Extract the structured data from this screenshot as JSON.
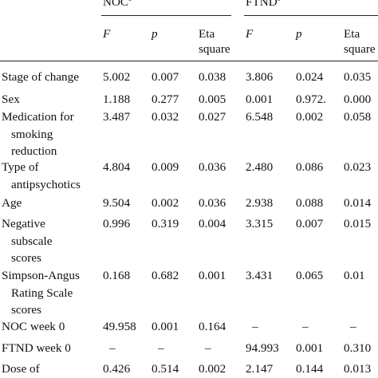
{
  "header": {
    "noc_label": "NOC",
    "noc_sup": "a",
    "ftnd_label": "FTND",
    "ftnd_sup": "b",
    "columns": [
      {
        "stat": "F"
      },
      {
        "stat": "p"
      },
      {
        "stat_line1": "Eta",
        "stat_line2": "square"
      },
      {
        "stat": "F"
      },
      {
        "stat": "p"
      },
      {
        "stat_line1": "Eta",
        "stat_line2": "square"
      }
    ]
  },
  "rows": [
    {
      "label_lines": [
        "Stage of change"
      ],
      "values": [
        "5.002",
        "0.007",
        "0.038",
        "3.806",
        "0.024",
        "0.035"
      ]
    },
    {
      "label_lines": [
        "Sex"
      ],
      "values": [
        "1.188",
        "0.277",
        "0.005",
        "0.001",
        "0.972.",
        "0.000"
      ]
    },
    {
      "label_lines": [
        "Medication for",
        "smoking",
        "reduction"
      ],
      "values": [
        "3.487",
        "0.032",
        "0.027",
        "6.548",
        "0.002",
        "0.058"
      ]
    },
    {
      "label_lines": [
        "Type of",
        "antipsychotics"
      ],
      "values": [
        "4.804",
        "0.009",
        "0.036",
        "2.480",
        "0.086",
        "0.023"
      ]
    },
    {
      "label_lines": [
        "Age"
      ],
      "values": [
        "9.504",
        "0.002",
        "0.036",
        "2.938",
        "0.088",
        "0.014"
      ]
    },
    {
      "label_lines": [
        "Negative",
        "subscale",
        "scores"
      ],
      "values": [
        "0.996",
        "0.319",
        "0.004",
        "3.315",
        "0.007",
        "0.015"
      ]
    },
    {
      "label_lines": [
        "Simpson-Angus",
        "Rating Scale",
        "scores"
      ],
      "values": [
        "0.168",
        "0.682",
        "0.001",
        "3.431",
        "0.065",
        "0.01"
      ]
    },
    {
      "label_lines": [
        "NOC week 0"
      ],
      "values": [
        "49.958",
        "0.001",
        "0.164",
        "–",
        "–",
        "–"
      ]
    },
    {
      "label_lines": [
        "FTND week 0"
      ],
      "values": [
        "–",
        "–",
        "–",
        "94.993",
        "0.001",
        "0.310"
      ]
    },
    {
      "label_lines": [
        "Dose of"
      ],
      "values": [
        "0.426",
        "0.514",
        "0.002",
        "2.147",
        "0.144",
        "0.013"
      ]
    }
  ]
}
